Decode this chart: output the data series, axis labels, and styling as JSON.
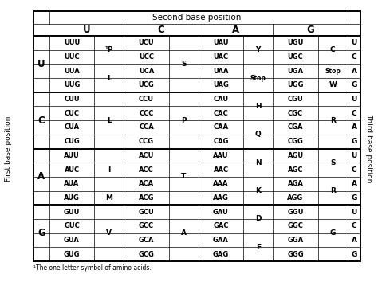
{
  "title": "Second base position",
  "left_label": "First base position",
  "right_label": "Third base position",
  "footnote": "¹The one letter symbol of amino acids.",
  "second_bases": [
    "U",
    "C",
    "A",
    "G"
  ],
  "first_bases": [
    "U",
    "C",
    "A",
    "G"
  ],
  "third_bases": [
    "U",
    "C",
    "A",
    "G"
  ],
  "rows": [
    [
      "UUU",
      "¹P",
      "UCU",
      "S",
      "UAU",
      "Y",
      "UGU",
      "C",
      "U"
    ],
    [
      "UUC",
      "",
      "UCC",
      "",
      "UAC",
      "",
      "UGC",
      "",
      "C"
    ],
    [
      "UUA",
      "L",
      "UCA",
      "",
      "UAA",
      "Stop",
      "UGA",
      "Stop",
      "A"
    ],
    [
      "UUG",
      "",
      "UCG",
      "",
      "UAG",
      "",
      "UGG",
      "W",
      "G"
    ],
    [
      "CUU",
      "L",
      "CCU",
      "P",
      "CAU",
      "H",
      "CGU",
      "R",
      "U"
    ],
    [
      "CUC",
      "",
      "CCC",
      "",
      "CAC",
      "",
      "CGC",
      "",
      "C"
    ],
    [
      "CUA",
      "",
      "CCA",
      "",
      "CAA",
      "Q",
      "CGA",
      "",
      "A"
    ],
    [
      "CUG",
      "",
      "CCG",
      "",
      "CAG",
      "",
      "CGG",
      "",
      "G"
    ],
    [
      "AUU",
      "I",
      "ACU",
      "T",
      "AAU",
      "N",
      "AGU",
      "S",
      "U"
    ],
    [
      "AUC",
      "",
      "ACC",
      "",
      "AAC",
      "",
      "AGC",
      "",
      "C"
    ],
    [
      "AUA",
      "",
      "ACA",
      "",
      "AAA",
      "K",
      "AGA",
      "R",
      "A"
    ],
    [
      "AUG",
      "M",
      "ACG",
      "",
      "AAG",
      "",
      "AGG",
      "",
      "G"
    ],
    [
      "GUU",
      "V",
      "GCU",
      "A",
      "GAU",
      "D",
      "GGU",
      "G",
      "U"
    ],
    [
      "GUC",
      "",
      "GCC",
      "",
      "GAC",
      "",
      "GGC",
      "",
      "C"
    ],
    [
      "GUA",
      "",
      "GCA",
      "",
      "GAA",
      "E",
      "GGA",
      "",
      "A"
    ],
    [
      "GUG",
      "",
      "GCG",
      "",
      "GAG",
      "",
      "GGG",
      "",
      "G"
    ]
  ],
  "bg_color": "#ffffff"
}
